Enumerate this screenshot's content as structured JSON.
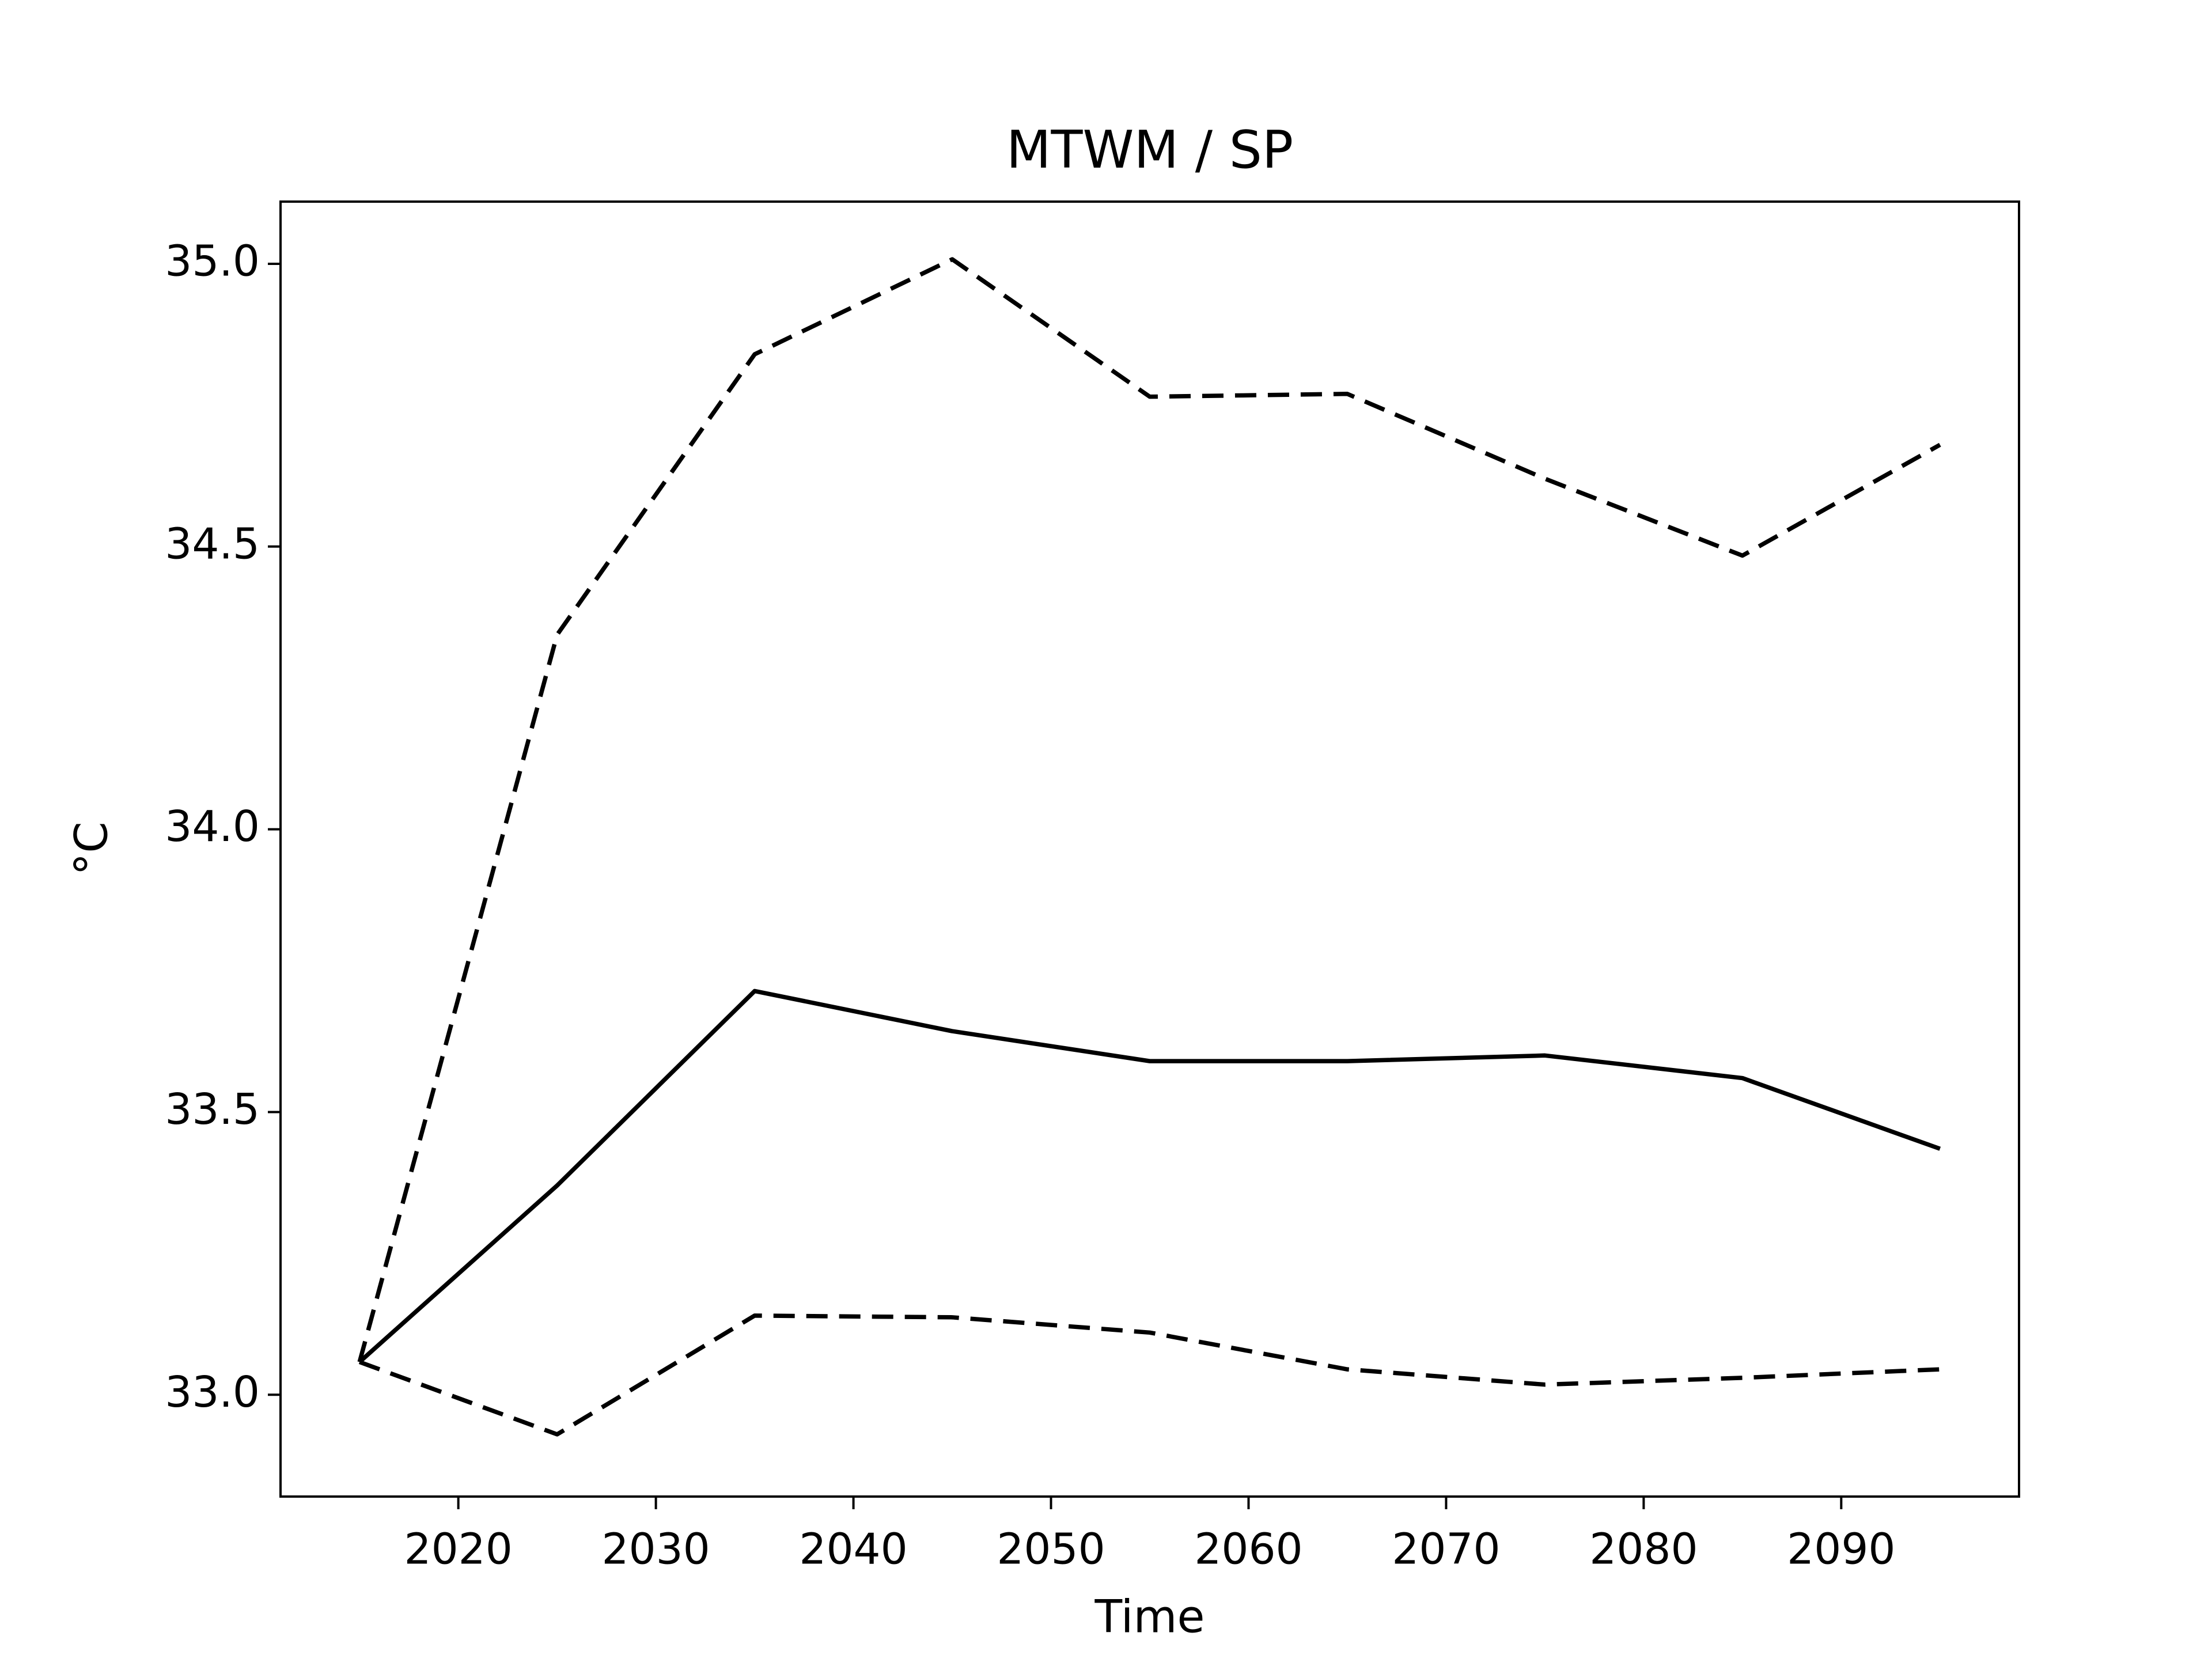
{
  "chart_data": {
    "type": "line",
    "title": "MTWM / SP",
    "x_label": "Time",
    "y_label": "°C",
    "x": [
      2015,
      2025,
      2035,
      2045,
      2055,
      2065,
      2075,
      2085,
      2095
    ],
    "series": [
      {
        "color": "#000000",
        "linestyle": "dashed",
        "values": [
          33.058,
          34.344,
          34.84,
          35.008,
          34.765,
          34.77,
          34.62,
          34.484,
          34.68
        ]
      },
      {
        "color": "#000000",
        "linestyle": "solid",
        "values": [
          33.058,
          33.37,
          33.714,
          33.643,
          33.59,
          33.59,
          33.6,
          33.56,
          33.435
        ]
      },
      {
        "color": "#000000",
        "linestyle": "dashed",
        "values": [
          33.058,
          32.93,
          33.14,
          33.137,
          33.11,
          33.045,
          33.018,
          33.03,
          33.045
        ]
      }
    ],
    "xlim": [
      2011,
      2099
    ],
    "xticks": [
      2020,
      2030,
      2040,
      2050,
      2060,
      2070,
      2080,
      2090
    ],
    "ylim": [
      32.82,
      35.11
    ],
    "yticks": [
      {
        "value": 33,
        "label": "33.0"
      },
      33.5,
      {
        "value": 34,
        "label": "34.0"
      },
      34.5,
      {
        "value": 35,
        "label": "35.0"
      }
    ],
    "grid": false
  }
}
